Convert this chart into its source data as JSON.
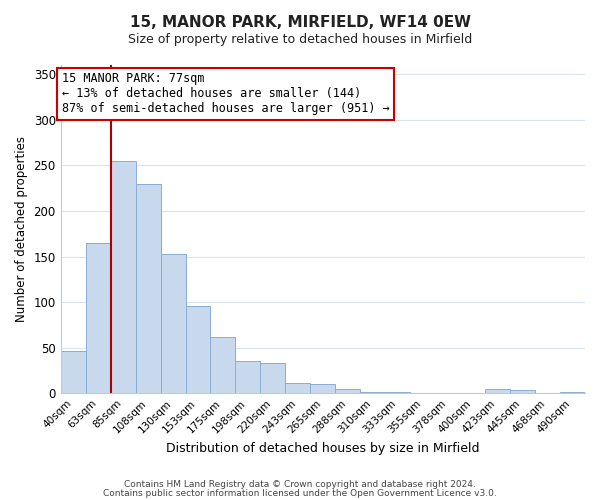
{
  "title": "15, MANOR PARK, MIRFIELD, WF14 0EW",
  "subtitle": "Size of property relative to detached houses in Mirfield",
  "xlabel": "Distribution of detached houses by size in Mirfield",
  "ylabel": "Number of detached properties",
  "bar_labels": [
    "40sqm",
    "63sqm",
    "85sqm",
    "108sqm",
    "130sqm",
    "153sqm",
    "175sqm",
    "198sqm",
    "220sqm",
    "243sqm",
    "265sqm",
    "288sqm",
    "310sqm",
    "333sqm",
    "355sqm",
    "378sqm",
    "400sqm",
    "423sqm",
    "445sqm",
    "468sqm",
    "490sqm"
  ],
  "bar_values": [
    46,
    165,
    255,
    230,
    153,
    96,
    62,
    35,
    33,
    11,
    10,
    5,
    2,
    1,
    0,
    0,
    0,
    5,
    4,
    0,
    2
  ],
  "bar_color": "#c8d9ee",
  "bar_edge_color": "#8aadd4",
  "ylim": [
    0,
    360
  ],
  "yticks": [
    0,
    50,
    100,
    150,
    200,
    250,
    300,
    350
  ],
  "marker_bar_index": 2,
  "marker_color": "#aa0000",
  "annotation_line1": "15 MANOR PARK: 77sqm",
  "annotation_line2": "← 13% of detached houses are smaller (144)",
  "annotation_line3": "87% of semi-detached houses are larger (951) →",
  "footer_line1": "Contains HM Land Registry data © Crown copyright and database right 2024.",
  "footer_line2": "Contains public sector information licensed under the Open Government Licence v3.0.",
  "background_color": "#ffffff",
  "grid_color": "#d8e4f0"
}
